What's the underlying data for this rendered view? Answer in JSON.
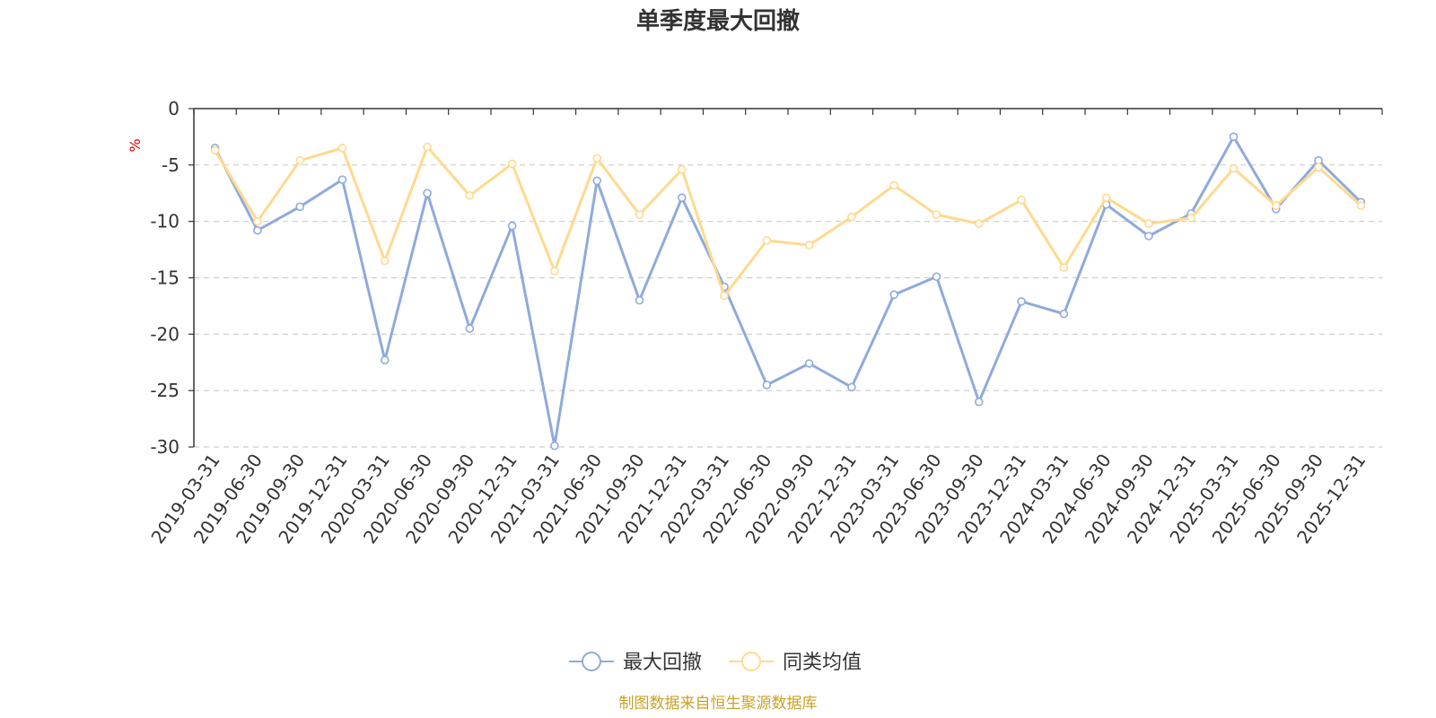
{
  "chart_data": {
    "type": "line",
    "title": "单季度最大回撤",
    "xlabel": "",
    "ylabel": "%",
    "ylim": [
      -30,
      0
    ],
    "yticks": [
      0,
      -5,
      -10,
      -15,
      -20,
      -25,
      -30
    ],
    "grid": true,
    "legend_position": "bottom-center",
    "categories": [
      "2019-03-31",
      "2019-06-30",
      "2019-09-30",
      "2019-12-31",
      "2020-03-31",
      "2020-06-30",
      "2020-09-30",
      "2020-12-31",
      "2021-03-31",
      "2021-06-30",
      "2021-09-30",
      "2021-12-31",
      "2022-03-31",
      "2022-06-30",
      "2022-09-30",
      "2022-12-31",
      "2023-03-31",
      "2023-06-30",
      "2023-09-30",
      "2023-12-31",
      "2024-03-31",
      "2024-06-30",
      "2024-09-30",
      "2024-12-31",
      "2025-03-31",
      "2025-06-30",
      "2025-09-30",
      "2025-12-31"
    ],
    "series": [
      {
        "name": "最大回撤",
        "color": "#8faadc",
        "values": [
          -3.5,
          -10.8,
          -8.7,
          -6.3,
          -22.3,
          -7.5,
          -19.5,
          -10.4,
          -29.9,
          -6.4,
          -17.0,
          -7.9,
          -15.8,
          -24.5,
          -22.6,
          -24.7,
          -16.5,
          -14.9,
          -26.0,
          -17.1,
          -18.2,
          -8.5,
          -11.3,
          -9.3,
          -2.5,
          -8.9,
          -4.6,
          -8.3
        ]
      },
      {
        "name": "同类均值",
        "color": "#ffd98e",
        "values": [
          -3.7,
          -10.0,
          -4.6,
          -3.5,
          -13.5,
          -3.4,
          -7.7,
          -4.9,
          -14.4,
          -4.4,
          -9.4,
          -5.4,
          -16.6,
          -11.7,
          -12.1,
          -9.6,
          -6.8,
          -9.4,
          -10.2,
          -8.1,
          -14.1,
          -7.9,
          -10.2,
          -9.7,
          -5.3,
          -8.6,
          -5.2,
          -8.6
        ]
      }
    ]
  },
  "source": "制图数据来自恒生聚源数据库"
}
